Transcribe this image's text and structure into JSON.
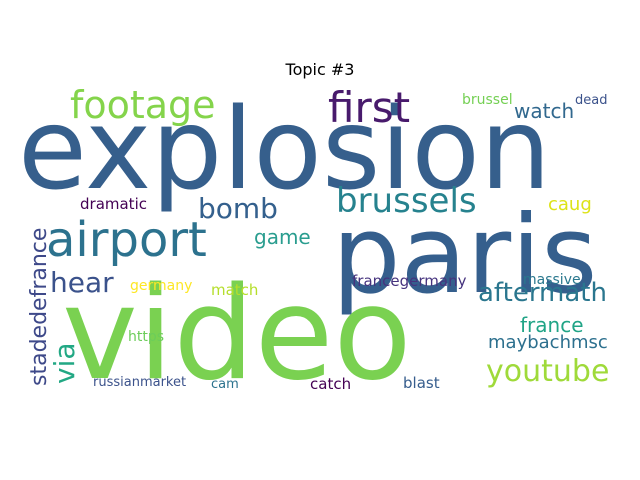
{
  "title": "Topic #3",
  "words": [
    {
      "key": "explosion",
      "text": "explosion",
      "color": "#365f8c"
    },
    {
      "key": "paris",
      "text": "paris",
      "color": "#355f8d"
    },
    {
      "key": "video",
      "text": "video",
      "color": "#7ad151"
    },
    {
      "key": "airport",
      "text": "airport",
      "color": "#2c728e"
    },
    {
      "key": "footage",
      "text": "footage",
      "color": "#84d44b"
    },
    {
      "key": "first",
      "text": "first",
      "color": "#481a6c"
    },
    {
      "key": "brussels",
      "text": "brussels",
      "color": "#26828e"
    },
    {
      "key": "bomb",
      "text": "bomb",
      "color": "#34608d"
    },
    {
      "key": "hear",
      "text": "hear",
      "color": "#3b528b"
    },
    {
      "key": "aftermath",
      "text": "aftermath",
      "color": "#2a768e"
    },
    {
      "key": "youtube",
      "text": "youtube",
      "color": "#9fda3a"
    },
    {
      "key": "stadedefrance",
      "text": "stadedefrance",
      "color": "#3e4989"
    },
    {
      "key": "via",
      "text": "via",
      "color": "#22a884"
    },
    {
      "key": "game",
      "text": "game",
      "color": "#2a9d8f"
    },
    {
      "key": "watch",
      "text": "watch",
      "color": "#31688e"
    },
    {
      "key": "france",
      "text": "france",
      "color": "#20a486"
    },
    {
      "key": "maybachmsc",
      "text": "maybachmsc",
      "color": "#2d708e"
    },
    {
      "key": "brussel",
      "text": "brussel",
      "color": "#75d054"
    },
    {
      "key": "dead",
      "text": "dead",
      "color": "#3b528b"
    },
    {
      "key": "caug",
      "text": "caug",
      "color": "#dde318"
    },
    {
      "key": "dramatic",
      "text": "dramatic",
      "color": "#440154"
    },
    {
      "key": "germany",
      "text": "germany",
      "color": "#fde725"
    },
    {
      "key": "match",
      "text": "match",
      "color": "#b5de2b"
    },
    {
      "key": "francegermany",
      "text": "francegermany",
      "color": "#46337e"
    },
    {
      "key": "massive",
      "text": "massive",
      "color": "#2a788e"
    },
    {
      "key": "https",
      "text": "https",
      "color": "#6ccd5a"
    },
    {
      "key": "russianmarket",
      "text": "russianmarket",
      "color": "#3b528b"
    },
    {
      "key": "cam",
      "text": "cam",
      "color": "#2c728e"
    },
    {
      "key": "catch",
      "text": "catch",
      "color": "#440154"
    },
    {
      "key": "blast",
      "text": "blast",
      "color": "#365d8d"
    }
  ]
}
